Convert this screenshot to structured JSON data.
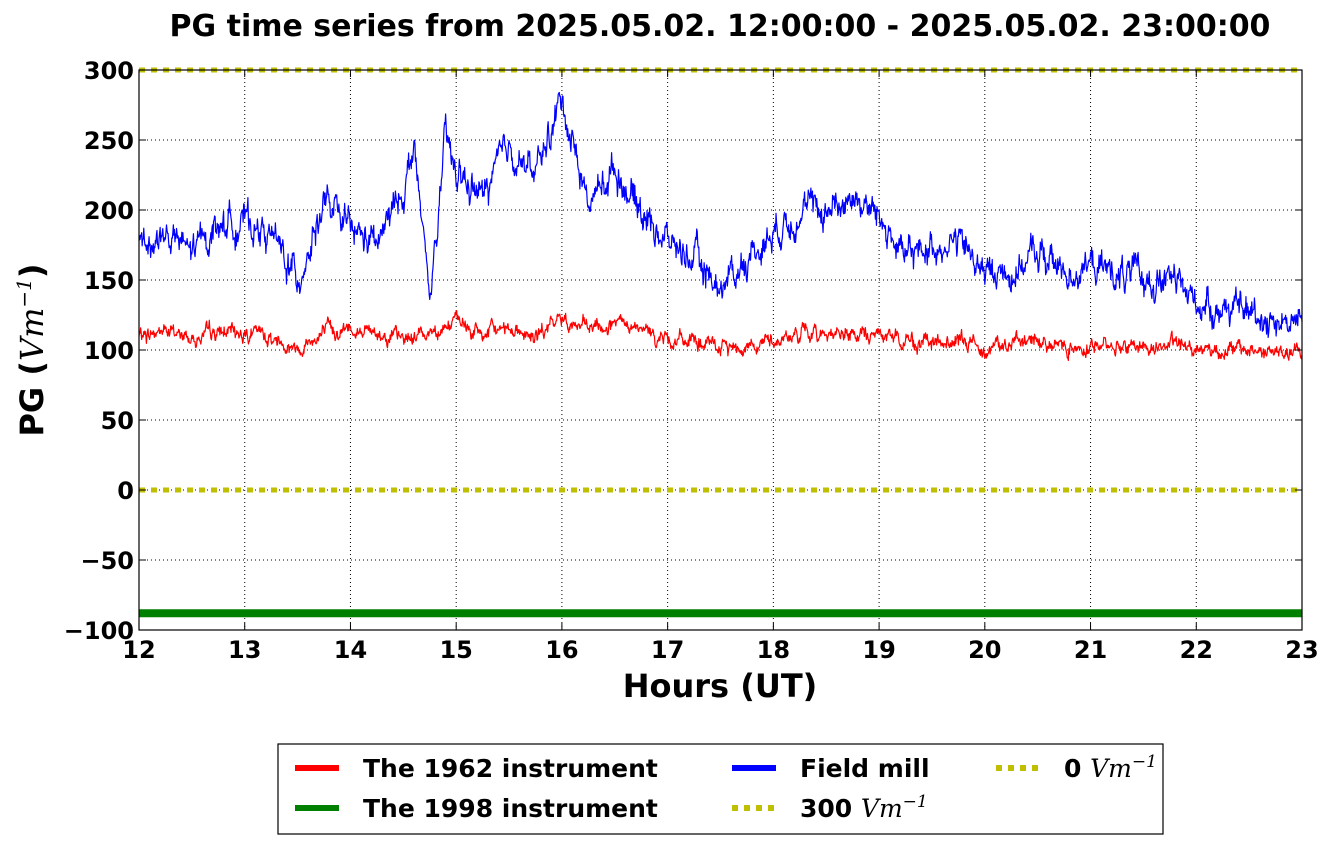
{
  "chart_data": {
    "type": "line",
    "title": "PG time series from 2025.05.02. 12:00:00 - 2025.05.02. 23:00:00",
    "xlabel": "Hours (UT)",
    "ylabel": "PG (",
    "ylabel_unit": "Vm",
    "ylabel_exp": "−1",
    "ylabel_close": ")",
    "xlim": [
      12,
      23
    ],
    "ylim": [
      -100,
      300
    ],
    "xticks": [
      12,
      13,
      14,
      15,
      16,
      17,
      18,
      19,
      20,
      21,
      22,
      23
    ],
    "yticks": [
      -100,
      -50,
      0,
      50,
      100,
      150,
      200,
      250,
      300
    ],
    "ytick_labels": [
      "−100",
      "−50",
      "0",
      "50",
      "100",
      "150",
      "200",
      "250",
      "300"
    ],
    "grid": true,
    "legend_placement": "bottom-center",
    "series": [
      {
        "name": "The 1962 instrument",
        "color": "#ff0000",
        "x": [
          12,
          12.25,
          12.5,
          12.75,
          13,
          13.25,
          13.5,
          13.75,
          14,
          14.25,
          14.5,
          14.75,
          15,
          15.25,
          15.5,
          15.75,
          16,
          16.25,
          16.5,
          16.75,
          17,
          17.25,
          17.5,
          17.75,
          18,
          18.25,
          18.5,
          18.75,
          19,
          19.25,
          19.5,
          19.75,
          20,
          20.25,
          20.5,
          20.75,
          21,
          21.25,
          21.5,
          21.75,
          22,
          22.25,
          22.5,
          22.75,
          23
        ],
        "values": [
          110,
          114,
          108,
          112,
          113,
          109,
          102,
          112,
          116,
          113,
          107,
          114,
          120,
          110,
          118,
          108,
          123,
          114,
          118,
          113,
          108,
          106,
          101,
          104,
          107,
          111,
          113,
          110,
          111,
          107,
          104,
          106,
          103,
          104,
          107,
          103,
          103,
          104,
          102,
          104,
          102,
          100,
          100,
          98,
          97
        ]
      },
      {
        "name": "The 1998 instrument",
        "color": "#008000",
        "x": [
          12,
          23
        ],
        "values": [
          -88,
          -88
        ]
      },
      {
        "name": "Field mill",
        "color": "#0000ff",
        "x": [
          12,
          12.25,
          12.5,
          12.75,
          13,
          13.25,
          13.5,
          13.75,
          14,
          14.25,
          14.5,
          14.6,
          14.75,
          14.9,
          15,
          15.25,
          15.5,
          15.75,
          16,
          16.25,
          16.5,
          16.75,
          17,
          17.25,
          17.5,
          17.75,
          18,
          18.25,
          18.5,
          18.75,
          19,
          19.25,
          19.5,
          19.75,
          20,
          20.25,
          20.5,
          20.75,
          21,
          21.25,
          21.5,
          21.75,
          22,
          22.25,
          22.5,
          22.75,
          23
        ],
        "values": [
          175,
          182,
          170,
          190,
          192,
          182,
          150,
          205,
          185,
          175,
          215,
          245,
          135,
          250,
          225,
          210,
          245,
          225,
          280,
          205,
          230,
          200,
          178,
          165,
          145,
          165,
          185,
          200,
          200,
          210,
          195,
          165,
          175,
          178,
          155,
          155,
          170,
          155,
          160,
          155,
          150,
          150,
          135,
          130,
          127,
          122,
          120
        ]
      }
    ],
    "reference_lines": [
      {
        "name": "300",
        "unit": "Vm",
        "exp": "−1",
        "value": 300,
        "color": "#bfbf00"
      },
      {
        "name": "0",
        "unit": "Vm",
        "exp": "−1",
        "value": 0,
        "color": "#bfbf00"
      }
    ]
  }
}
